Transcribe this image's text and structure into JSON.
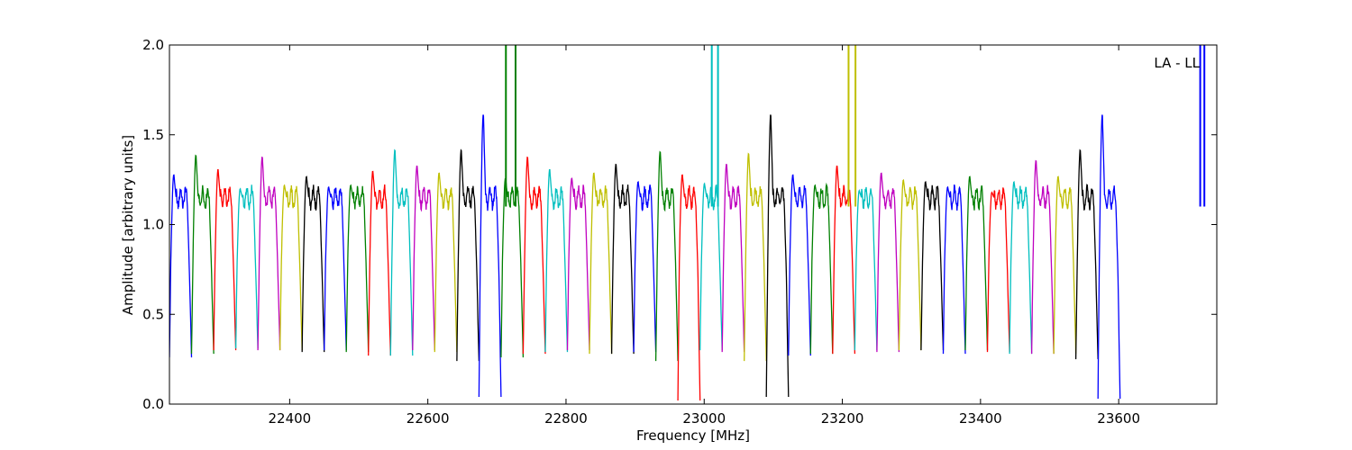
{
  "chart_data": {
    "type": "line",
    "title": "",
    "xlabel": "Frequency [MHz]",
    "ylabel": "Amplitude [arbitrary units]",
    "annotation": "LA - LL",
    "annotation_position": "top-right",
    "xlim": [
      22226,
      23742
    ],
    "ylim": [
      0.0,
      2.0
    ],
    "xticks": [
      22400,
      22600,
      22800,
      23000,
      23200,
      23400,
      23600
    ],
    "xtick_labels": [
      "22400",
      "22600",
      "22800",
      "23000",
      "23200",
      "23400",
      "23600"
    ],
    "yticks": [
      0.0,
      0.5,
      1.0,
      1.5,
      2.0
    ],
    "ytick_labels": [
      "0.0",
      "0.5",
      "1.0",
      "1.5",
      "2.0"
    ],
    "grid": false,
    "legend": "none",
    "colors": [
      "#0000ff",
      "#008000",
      "#ff0000",
      "#00bfbf",
      "#bf00bf",
      "#bfbf00",
      "#000000"
    ],
    "band_width_mhz": 32,
    "band_start_mhz": 22226,
    "band_peaks": [
      1.28,
      1.39,
      1.31,
      1.2,
      1.38,
      1.22,
      1.27,
      1.21,
      1.22,
      1.3,
      1.42,
      1.33,
      1.29,
      1.42,
      1.62,
      1.26,
      1.38,
      1.31,
      1.26,
      1.29,
      1.34,
      1.24,
      1.41,
      1.28,
      1.23,
      1.34,
      1.4,
      1.62,
      1.28,
      1.22,
      1.33,
      1.19,
      1.29,
      1.25,
      1.24,
      1.21,
      1.27,
      1.18,
      1.24,
      1.36,
      1.27,
      1.42,
      1.62
    ],
    "band_troughs": [
      0.26,
      0.28,
      0.3,
      0.31,
      0.3,
      0.3,
      0.29,
      0.3,
      0.29,
      0.27,
      0.27,
      0.3,
      0.29,
      0.24,
      0.04,
      0.26,
      0.28,
      0.29,
      0.3,
      0.28,
      0.28,
      0.29,
      0.24,
      0.02,
      0.3,
      0.29,
      0.24,
      0.04,
      0.27,
      0.28,
      0.28,
      0.3,
      0.29,
      0.3,
      0.3,
      0.28,
      0.3,
      0.29,
      0.28,
      0.28,
      0.28,
      0.25,
      0.03
    ],
    "spikes": [
      {
        "x": 22713,
        "y": 2.0,
        "color": "#008000"
      },
      {
        "x": 22727,
        "y": 2.0,
        "color": "#008000"
      },
      {
        "x": 23011,
        "y": 2.0,
        "color": "#00bfbf"
      },
      {
        "x": 23020,
        "y": 2.0,
        "color": "#00bfbf"
      },
      {
        "x": 23209,
        "y": 2.0,
        "color": "#bfbf00"
      },
      {
        "x": 23219,
        "y": 2.0,
        "color": "#bfbf00"
      },
      {
        "x": 23718,
        "y": 2.0,
        "color": "#0000ff"
      },
      {
        "x": 23724,
        "y": 2.0,
        "color": "#0000ff"
      }
    ]
  }
}
